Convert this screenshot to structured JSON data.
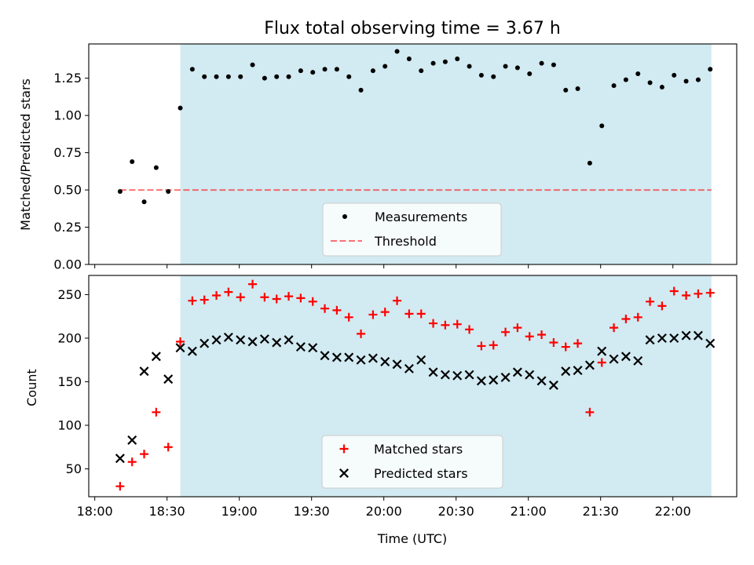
{
  "chart_data": {
    "title": "Flux total observing time = 3.67 h",
    "xlabel": "Time (UTC)",
    "x_unit": "minutes after 18:00 UTC",
    "x_ticks": [
      {
        "value": 0,
        "label": "18:00"
      },
      {
        "value": 30,
        "label": "18:30"
      },
      {
        "value": 60,
        "label": "19:00"
      },
      {
        "value": 90,
        "label": "19:30"
      },
      {
        "value": 120,
        "label": "20:00"
      },
      {
        "value": 150,
        "label": "20:30"
      },
      {
        "value": 180,
        "label": "21:00"
      },
      {
        "value": 210,
        "label": "21:30"
      },
      {
        "value": 240,
        "label": "22:00"
      }
    ],
    "x_range": [
      -2.5,
      266.5
    ],
    "shaded_interval": {
      "start": 35.5,
      "end": 256.0,
      "color": "#add8e6"
    },
    "panels": [
      {
        "type": "scatter",
        "ylabel": "Matched/Predicted stars",
        "ylim": [
          0,
          1.48
        ],
        "yticks": [
          0.0,
          0.25,
          0.5,
          0.75,
          1.0,
          1.25
        ],
        "ytick_labels": [
          "0.00",
          "0.25",
          "0.50",
          "0.75",
          "1.00",
          "1.25"
        ],
        "legend": {
          "position": "bottom-center",
          "entries": [
            "Measurements",
            "Threshold"
          ]
        },
        "threshold": {
          "name": "Threshold",
          "value": 0.5,
          "x_start": 10.5,
          "x_end": 256.0,
          "color": "#ff0000",
          "style": "dashed",
          "alpha": 0.55
        },
        "series": [
          {
            "name": "Measurements",
            "marker": "dot",
            "color": "#000000",
            "x": [
              10.5,
              15.5,
              20.5,
              25.5,
              30.5,
              35.5,
              40.5,
              45.5,
              50.5,
              55.5,
              60.5,
              65.5,
              70.5,
              75.5,
              80.5,
              85.5,
              90.5,
              95.5,
              100.5,
              105.5,
              110.5,
              115.5,
              120.5,
              125.5,
              130.5,
              135.5,
              140.5,
              145.5,
              150.5,
              155.5,
              160.5,
              165.5,
              170.5,
              175.5,
              180.5,
              185.5,
              190.5,
              195.5,
              200.5,
              205.5,
              210.5,
              215.5,
              220.5,
              225.5,
              230.5,
              235.5,
              240.5,
              245.5,
              250.5,
              255.5
            ],
            "y": [
              0.49,
              0.69,
              0.42,
              0.65,
              0.49,
              1.05,
              1.31,
              1.26,
              1.26,
              1.26,
              1.26,
              1.34,
              1.25,
              1.26,
              1.26,
              1.3,
              1.29,
              1.31,
              1.31,
              1.26,
              1.17,
              1.3,
              1.33,
              1.43,
              1.38,
              1.3,
              1.35,
              1.36,
              1.38,
              1.33,
              1.27,
              1.26,
              1.33,
              1.32,
              1.28,
              1.35,
              1.34,
              1.17,
              1.18,
              0.68,
              0.93,
              1.2,
              1.24,
              1.28,
              1.22,
              1.19,
              1.27,
              1.23,
              1.24,
              1.31
            ]
          }
        ]
      },
      {
        "type": "scatter",
        "ylabel": "Count",
        "ylim": [
          18,
          272
        ],
        "yticks": [
          50,
          100,
          150,
          200,
          250
        ],
        "ytick_labels": [
          "50",
          "100",
          "150",
          "200",
          "250"
        ],
        "legend": {
          "position": "bottom-center",
          "entries": [
            "Matched stars",
            "Predicted stars"
          ]
        },
        "series": [
          {
            "name": "Matched stars",
            "marker": "plus",
            "color": "#ff0000",
            "x": [
              10.5,
              15.5,
              20.5,
              25.5,
              30.5,
              35.5,
              40.5,
              45.5,
              50.5,
              55.5,
              60.5,
              65.5,
              70.5,
              75.5,
              80.5,
              85.5,
              90.5,
              95.5,
              100.5,
              105.5,
              110.5,
              115.5,
              120.5,
              125.5,
              130.5,
              135.5,
              140.5,
              145.5,
              150.5,
              155.5,
              160.5,
              165.5,
              170.5,
              175.5,
              180.5,
              185.5,
              190.5,
              195.5,
              200.5,
              205.5,
              210.5,
              215.5,
              220.5,
              225.5,
              230.5,
              235.5,
              240.5,
              245.5,
              250.5,
              255.5
            ],
            "y": [
              30,
              58,
              67,
              115,
              75,
              196,
              243,
              244,
              249,
              253,
              247,
              262,
              247,
              245,
              248,
              246,
              242,
              234,
              232,
              224,
              205,
              227,
              230,
              243,
              228,
              228,
              217,
              215,
              216,
              210,
              191,
              192,
              207,
              212,
              202,
              204,
              195,
              190,
              194,
              115,
              172,
              212,
              222,
              224,
              242,
              237,
              254,
              249,
              251,
              252
            ]
          },
          {
            "name": "Predicted stars",
            "marker": "x",
            "color": "#000000",
            "x": [
              10.5,
              15.5,
              20.5,
              25.5,
              30.5,
              35.5,
              40.5,
              45.5,
              50.5,
              55.5,
              60.5,
              65.5,
              70.5,
              75.5,
              80.5,
              85.5,
              90.5,
              95.5,
              100.5,
              105.5,
              110.5,
              115.5,
              120.5,
              125.5,
              130.5,
              135.5,
              140.5,
              145.5,
              150.5,
              155.5,
              160.5,
              165.5,
              170.5,
              175.5,
              180.5,
              185.5,
              190.5,
              195.5,
              200.5,
              205.5,
              210.5,
              215.5,
              220.5,
              225.5,
              230.5,
              235.5,
              240.5,
              245.5,
              250.5,
              255.5
            ],
            "y": [
              62,
              83,
              162,
              179,
              153,
              189,
              185,
              194,
              198,
              201,
              198,
              196,
              199,
              195,
              198,
              190,
              189,
              180,
              178,
              178,
              175,
              177,
              173,
              170,
              165,
              175,
              161,
              158,
              157,
              158,
              151,
              152,
              155,
              161,
              158,
              151,
              146,
              162,
              163,
              169,
              185,
              176,
              179,
              174,
              198,
              200,
              200,
              203,
              203,
              194
            ]
          }
        ]
      }
    ]
  }
}
